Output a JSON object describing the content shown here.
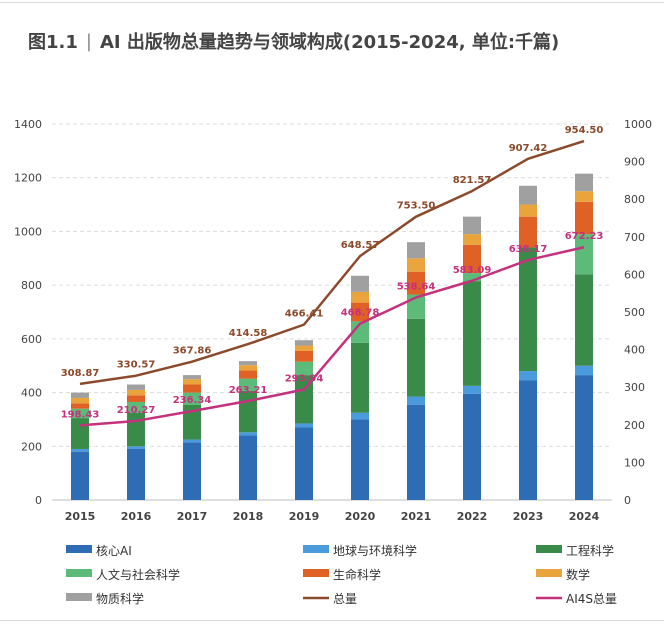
{
  "figure": {
    "number": "图1.1",
    "separator": "|",
    "title": "AI 出版物总量趋势与领域构成(2015-2024, 单位:千篇)"
  },
  "chart_data": {
    "type": "bar",
    "stacked": true,
    "categories": [
      "2015",
      "2016",
      "2017",
      "2018",
      "2019",
      "2020",
      "2021",
      "2022",
      "2023",
      "2024"
    ],
    "y_left": {
      "min": 0,
      "max": 1400,
      "ticks": [
        0,
        200,
        400,
        600,
        800,
        1000,
        1200,
        1400
      ]
    },
    "y_right": {
      "min": 0,
      "max": 1000,
      "ticks": [
        0,
        100,
        200,
        300,
        400,
        500,
        600,
        700,
        800,
        900,
        1000
      ]
    },
    "grid": true,
    "legend_position": "bottom",
    "stack_series": [
      {
        "name": "核心AI",
        "color": "#2e6db4",
        "values": [
          180,
          190,
          215,
          240,
          270,
          300,
          355,
          395,
          445,
          465
        ]
      },
      {
        "name": "地球与环境科学",
        "color": "#4a9bdc",
        "values": [
          10,
          10,
          10,
          12,
          15,
          25,
          30,
          30,
          35,
          35
        ]
      },
      {
        "name": "工程科学",
        "color": "#3a8a4a",
        "values": [
          115,
          125,
          130,
          155,
          180,
          260,
          290,
          390,
          460,
          340
        ]
      },
      {
        "name": "人文与社会科学",
        "color": "#5dbb79",
        "values": [
          35,
          40,
          45,
          45,
          50,
          80,
          90,
          30,
          0,
          150
        ]
      },
      {
        "name": "生命科学",
        "color": "#e06126",
        "values": [
          20,
          25,
          30,
          30,
          40,
          70,
          85,
          105,
          115,
          120
        ]
      },
      {
        "name": "数学",
        "color": "#e9a43b",
        "values": [
          20,
          20,
          20,
          20,
          20,
          40,
          50,
          40,
          45,
          40
        ]
      },
      {
        "name": "物质科学",
        "color": "#a0a0a0",
        "values": [
          20,
          20,
          15,
          15,
          20,
          60,
          60,
          65,
          70,
          65
        ]
      }
    ],
    "line_series": [
      {
        "name": "总量",
        "color": "#8b4a2b",
        "axis": "right",
        "values": [
          308.87,
          330.57,
          367.86,
          414.58,
          466.41,
          648.57,
          753.5,
          821.57,
          907.42,
          954.5
        ],
        "labels": [
          "308.87",
          "330.57",
          "367.86",
          "414.58",
          "466.41",
          "648.57",
          "753.50",
          "821.57",
          "907.42",
          "954.50"
        ]
      },
      {
        "name": "AI4S总量",
        "color": "#c4317d",
        "axis": "right",
        "values": [
          198.43,
          210.27,
          236.34,
          263.21,
          293.94,
          468.78,
          538.64,
          583.09,
          638.17,
          672.23
        ],
        "labels": [
          "198.43",
          "210.27",
          "236.34",
          "263.21",
          "293.94",
          "468.78",
          "538.64",
          "583.09",
          "638.17",
          "672.23"
        ]
      }
    ],
    "legend": [
      {
        "name": "核心AI",
        "kind": "bar",
        "color": "#2e6db4"
      },
      {
        "name": "地球与环境科学",
        "kind": "bar",
        "color": "#4a9bdc"
      },
      {
        "name": "工程科学",
        "kind": "bar",
        "color": "#3a8a4a"
      },
      {
        "name": "人文与社会科学",
        "kind": "bar",
        "color": "#5dbb79"
      },
      {
        "name": "生命科学",
        "kind": "bar",
        "color": "#e06126"
      },
      {
        "name": "数学",
        "kind": "bar",
        "color": "#e9a43b"
      },
      {
        "name": "物质科学",
        "kind": "bar",
        "color": "#a0a0a0"
      },
      {
        "name": "总量",
        "kind": "line",
        "color": "#8b4a2b"
      },
      {
        "name": "AI4S总量",
        "kind": "line",
        "color": "#c4317d"
      }
    ]
  }
}
